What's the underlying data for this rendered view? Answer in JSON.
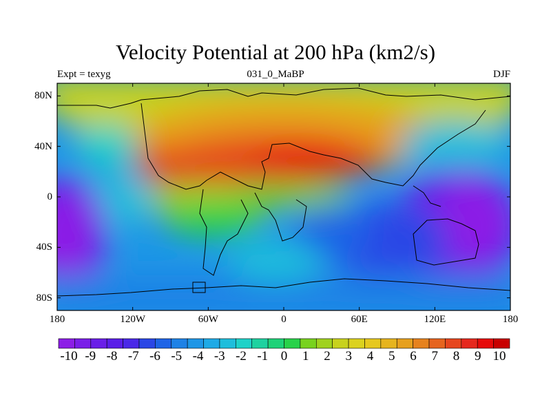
{
  "title": "Velocity Potential at 200 hPa (km2/s)",
  "subtitle_left": "Expt = texyg",
  "subtitle_center": "031_0_MaBP",
  "subtitle_right": "DJF",
  "lat_labels": [
    "80N",
    "40N",
    "0",
    "40S",
    "80S"
  ],
  "lat_values": [
    80,
    40,
    0,
    -40,
    -80
  ],
  "lon_labels": [
    "180",
    "120W",
    "60W",
    "0",
    "60E",
    "120E",
    "180"
  ],
  "lon_values": [
    -180,
    -120,
    -60,
    0,
    60,
    120,
    180
  ],
  "map_extent": {
    "lon": [
      -180,
      180
    ],
    "lat": [
      -90,
      90
    ]
  },
  "colorbar": {
    "labels": [
      "-10",
      "-9",
      "-8",
      "-7",
      "-6",
      "-5",
      "-4",
      "-3",
      "-2",
      "-1",
      "0",
      "1",
      "2",
      "3",
      "4",
      "5",
      "6",
      "7",
      "8",
      "9",
      "10"
    ],
    "levels": [
      -10,
      -9,
      -8,
      -7,
      -6,
      -5,
      -4,
      -3,
      -2,
      -1,
      0,
      1,
      2,
      3,
      4,
      5,
      6,
      7,
      8,
      9,
      10
    ],
    "colors": [
      "#8c1ee6",
      "#7a1ee8",
      "#6a1ee8",
      "#5a1ee8",
      "#4a28e8",
      "#2a46e6",
      "#1e64e6",
      "#1e82e6",
      "#1e96e6",
      "#1eaae6",
      "#1ebedc",
      "#1ed2c8",
      "#1ed2a0",
      "#1ed278",
      "#28d24a",
      "#78d21e",
      "#a0d21e",
      "#c8d21e",
      "#dcd21e",
      "#e6c81e",
      "#e6b41e",
      "#e6a01e",
      "#e6821e",
      "#e6641e",
      "#e6461e",
      "#e6281e",
      "#e60a0a",
      "#c80000"
    ]
  },
  "chart_data": {
    "type": "heatmap",
    "variable": "Velocity Potential at 200 hPa",
    "units": "km2/s",
    "experiment": "texyg",
    "run": "031_0_MaBP",
    "season": "DJF",
    "range": [
      -10,
      10
    ],
    "centers": [
      {
        "lon": -20,
        "lat": 25,
        "value": 10
      },
      {
        "lon": 15,
        "lat": 30,
        "value": 10
      },
      {
        "lon": -70,
        "lat": 28,
        "value": 9
      },
      {
        "lon": 0,
        "lat": 50,
        "value": 7
      },
      {
        "lon": 150,
        "lat": -30,
        "value": -10
      },
      {
        "lon": -170,
        "lat": -30,
        "value": -10
      },
      {
        "lon": 110,
        "lat": -40,
        "value": -7
      },
      {
        "lon": 40,
        "lat": -25,
        "value": -5
      },
      {
        "lon": -30,
        "lat": -30,
        "value": 1
      },
      {
        "lon": 160,
        "lat": 40,
        "value": -2
      }
    ]
  }
}
